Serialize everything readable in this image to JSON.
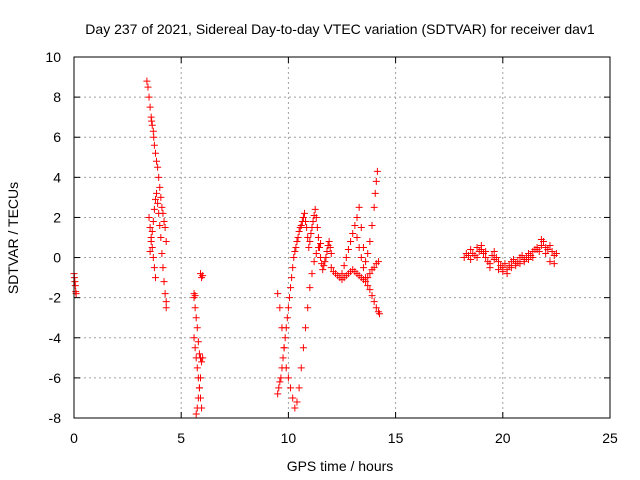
{
  "chart_data": {
    "type": "scatter",
    "title": "Day 237 of 2021, Sidereal Day-to-day VTEC variation (SDTVAR) for receiver dav1",
    "xlabel": "GPS time / hours",
    "ylabel": "SDTVAR / TECUs",
    "xlim": [
      0,
      25
    ],
    "ylim": [
      -8,
      10
    ],
    "xticks": [
      0,
      5,
      10,
      15,
      20,
      25
    ],
    "yticks": [
      -8,
      -6,
      -4,
      -2,
      0,
      2,
      4,
      6,
      8,
      10
    ],
    "grid": true,
    "marker": "+",
    "series": [
      {
        "name": "SDTVAR",
        "color": "#ff0000",
        "x": [
          0.0,
          0.02,
          0.04,
          0.06,
          0.08,
          0.1,
          3.4,
          3.45,
          3.5,
          3.55,
          3.6,
          3.62,
          3.65,
          3.7,
          3.72,
          3.75,
          3.8,
          3.85,
          3.9,
          3.95,
          4.0,
          4.05,
          4.1,
          4.15,
          4.2,
          4.25,
          3.5,
          3.55,
          3.6,
          3.65,
          3.7,
          3.75,
          3.8,
          3.55,
          3.6,
          3.65,
          3.7,
          3.75,
          3.8,
          3.85,
          3.9,
          3.95,
          4.0,
          4.05,
          4.1,
          4.15,
          4.2,
          4.25,
          4.3,
          4.3,
          4.3,
          5.6,
          5.65,
          5.7,
          5.75,
          5.8,
          5.85,
          5.9,
          5.95,
          5.7,
          5.75,
          5.8,
          5.85,
          5.9,
          5.6,
          5.65,
          5.7,
          5.75,
          5.8,
          5.85,
          5.6,
          5.65,
          5.9,
          5.95,
          6.0,
          5.9,
          5.95,
          6.0,
          9.5,
          9.55,
          9.6,
          9.65,
          9.7,
          9.75,
          9.8,
          9.85,
          9.9,
          9.95,
          10.0,
          10.05,
          10.1,
          10.15,
          10.2,
          10.25,
          10.3,
          10.35,
          10.4,
          10.45,
          10.5,
          10.55,
          10.6,
          10.65,
          10.7,
          10.75,
          10.8,
          10.85,
          10.9,
          10.95,
          11.0,
          11.05,
          11.1,
          11.15,
          11.2,
          11.25,
          11.3,
          11.35,
          11.4,
          11.45,
          11.5,
          11.55,
          11.6,
          11.65,
          11.7,
          11.75,
          11.8,
          11.85,
          11.9,
          11.95,
          12.0,
          9.5,
          9.6,
          9.7,
          9.8,
          9.9,
          10.0,
          10.1,
          10.2,
          10.3,
          10.4,
          10.5,
          10.6,
          10.7,
          10.8,
          10.9,
          11.0,
          11.1,
          11.2,
          11.3,
          11.4,
          11.5,
          12.0,
          12.1,
          12.2,
          12.3,
          12.4,
          12.5,
          12.6,
          12.7,
          12.8,
          12.9,
          13.0,
          13.1,
          13.2,
          13.3,
          13.4,
          13.5,
          13.6,
          13.7,
          13.8,
          13.9,
          14.0,
          14.1,
          14.2,
          12.5,
          12.6,
          12.7,
          12.8,
          12.9,
          13.0,
          13.1,
          13.2,
          13.3,
          13.4,
          13.5,
          13.6,
          13.7,
          13.8,
          13.9,
          14.0,
          14.05,
          14.1,
          14.15,
          13.2,
          13.3,
          13.4,
          13.5,
          13.6,
          13.7,
          13.8,
          13.9,
          14.0,
          14.1,
          14.2,
          14.25,
          18.2,
          18.3,
          18.4,
          18.5,
          18.6,
          18.7,
          18.8,
          18.9,
          19.0,
          19.1,
          19.2,
          19.3,
          19.4,
          19.5,
          19.6,
          19.7,
          19.8,
          19.9,
          20.0,
          20.1,
          20.2,
          20.3,
          20.4,
          20.5,
          20.6,
          20.7,
          20.8,
          20.9,
          21.0,
          21.1,
          21.2,
          21.3,
          21.4,
          21.5,
          21.6,
          21.7,
          21.8,
          21.9,
          22.0,
          22.1,
          22.2,
          22.3,
          22.4,
          22.5,
          18.5,
          18.8,
          19.0,
          19.2,
          19.4,
          19.6,
          19.8,
          20.0,
          20.2,
          20.4,
          20.6,
          20.8,
          21.0,
          21.2,
          21.4,
          21.6,
          21.8,
          22.0,
          22.2,
          22.4
        ],
        "y": [
          -0.8,
          -1.0,
          -1.2,
          -1.4,
          -1.7,
          -1.8,
          8.8,
          8.5,
          8.0,
          7.5,
          7.0,
          6.8,
          6.6,
          6.3,
          6.0,
          5.6,
          5.2,
          4.8,
          4.5,
          4.0,
          3.5,
          3.0,
          2.5,
          2.2,
          1.8,
          1.5,
          2.0,
          1.5,
          1.0,
          0.5,
          0.0,
          -0.5,
          -1.0,
          0.3,
          0.8,
          1.3,
          1.8,
          2.4,
          2.9,
          3.2,
          2.7,
          2.2,
          1.6,
          1.0,
          0.2,
          -0.5,
          -1.2,
          -1.8,
          -2.2,
          -2.5,
          0.8,
          -4.0,
          -4.5,
          -5.0,
          -5.5,
          -6.0,
          -6.5,
          -7.0,
          -7.5,
          -7.8,
          -7.5,
          -7.0,
          -6.5,
          -6.0,
          -2.0,
          -2.5,
          -3.0,
          -3.5,
          -4.2,
          -4.8,
          -1.8,
          -1.9,
          -5.0,
          -5.2,
          -5.0,
          -0.8,
          -1.0,
          -0.9,
          -6.8,
          -6.5,
          -6.2,
          -6.0,
          -5.5,
          -5.0,
          -4.5,
          -4.0,
          -3.5,
          -3.0,
          -2.5,
          -2.0,
          -1.5,
          -1.0,
          -0.5,
          0.0,
          0.3,
          0.5,
          0.8,
          1.0,
          1.3,
          1.5,
          1.6,
          1.8,
          2.0,
          2.2,
          1.8,
          1.5,
          1.0,
          0.5,
          0.8,
          1.2,
          1.5,
          1.8,
          2.1,
          2.4,
          2.0,
          1.5,
          1.0,
          0.5,
          0.0,
          -0.3,
          -0.6,
          -0.4,
          -0.2,
          0.0,
          0.3,
          0.6,
          0.8,
          0.5,
          0.2,
          -1.8,
          -2.5,
          -3.5,
          -4.5,
          -5.5,
          -6.0,
          -6.5,
          -7.0,
          -7.5,
          -7.2,
          -6.5,
          -5.5,
          -4.5,
          -3.5,
          -2.5,
          -1.5,
          -0.8,
          -0.2,
          0.2,
          0.5,
          0.7,
          -0.5,
          -0.7,
          -0.8,
          -0.9,
          -1.0,
          -1.1,
          -1.0,
          -0.9,
          -0.8,
          -0.7,
          -0.6,
          -0.7,
          -0.8,
          -0.9,
          -1.0,
          -1.1,
          -1.2,
          -1.0,
          -0.8,
          -0.6,
          -0.5,
          -0.3,
          -0.2,
          -0.8,
          -0.4,
          0.0,
          0.4,
          0.8,
          1.2,
          1.6,
          2.0,
          2.5,
          1.5,
          0.5,
          -0.2,
          0.2,
          0.8,
          1.6,
          2.5,
          3.2,
          3.8,
          4.3,
          1.0,
          0.5,
          0.0,
          -0.5,
          -1.0,
          -1.4,
          -1.6,
          -1.9,
          -2.2,
          -2.5,
          -2.7,
          -2.8,
          0.0,
          0.2,
          0.1,
          -0.1,
          0.2,
          0.1,
          0.0,
          0.3,
          0.4,
          0.2,
          0.0,
          -0.2,
          -0.3,
          0.1,
          0.3,
          0.0,
          -0.2,
          -0.4,
          -0.5,
          -0.3,
          -0.6,
          -0.4,
          -0.2,
          -0.1,
          -0.3,
          -0.2,
          0.0,
          0.1,
          -0.1,
          0.0,
          0.2,
          0.1,
          0.3,
          0.4,
          0.5,
          0.3,
          0.6,
          0.8,
          0.5,
          0.4,
          0.6,
          0.3,
          0.1,
          0.2,
          0.4,
          0.5,
          0.6,
          0.3,
          -0.5,
          -0.1,
          -0.6,
          -0.7,
          -0.8,
          -0.5,
          -0.4,
          -0.3,
          -0.2,
          -0.1,
          0.0,
          0.4,
          0.9,
          0.2,
          -0.2,
          -0.3
        ]
      }
    ]
  }
}
